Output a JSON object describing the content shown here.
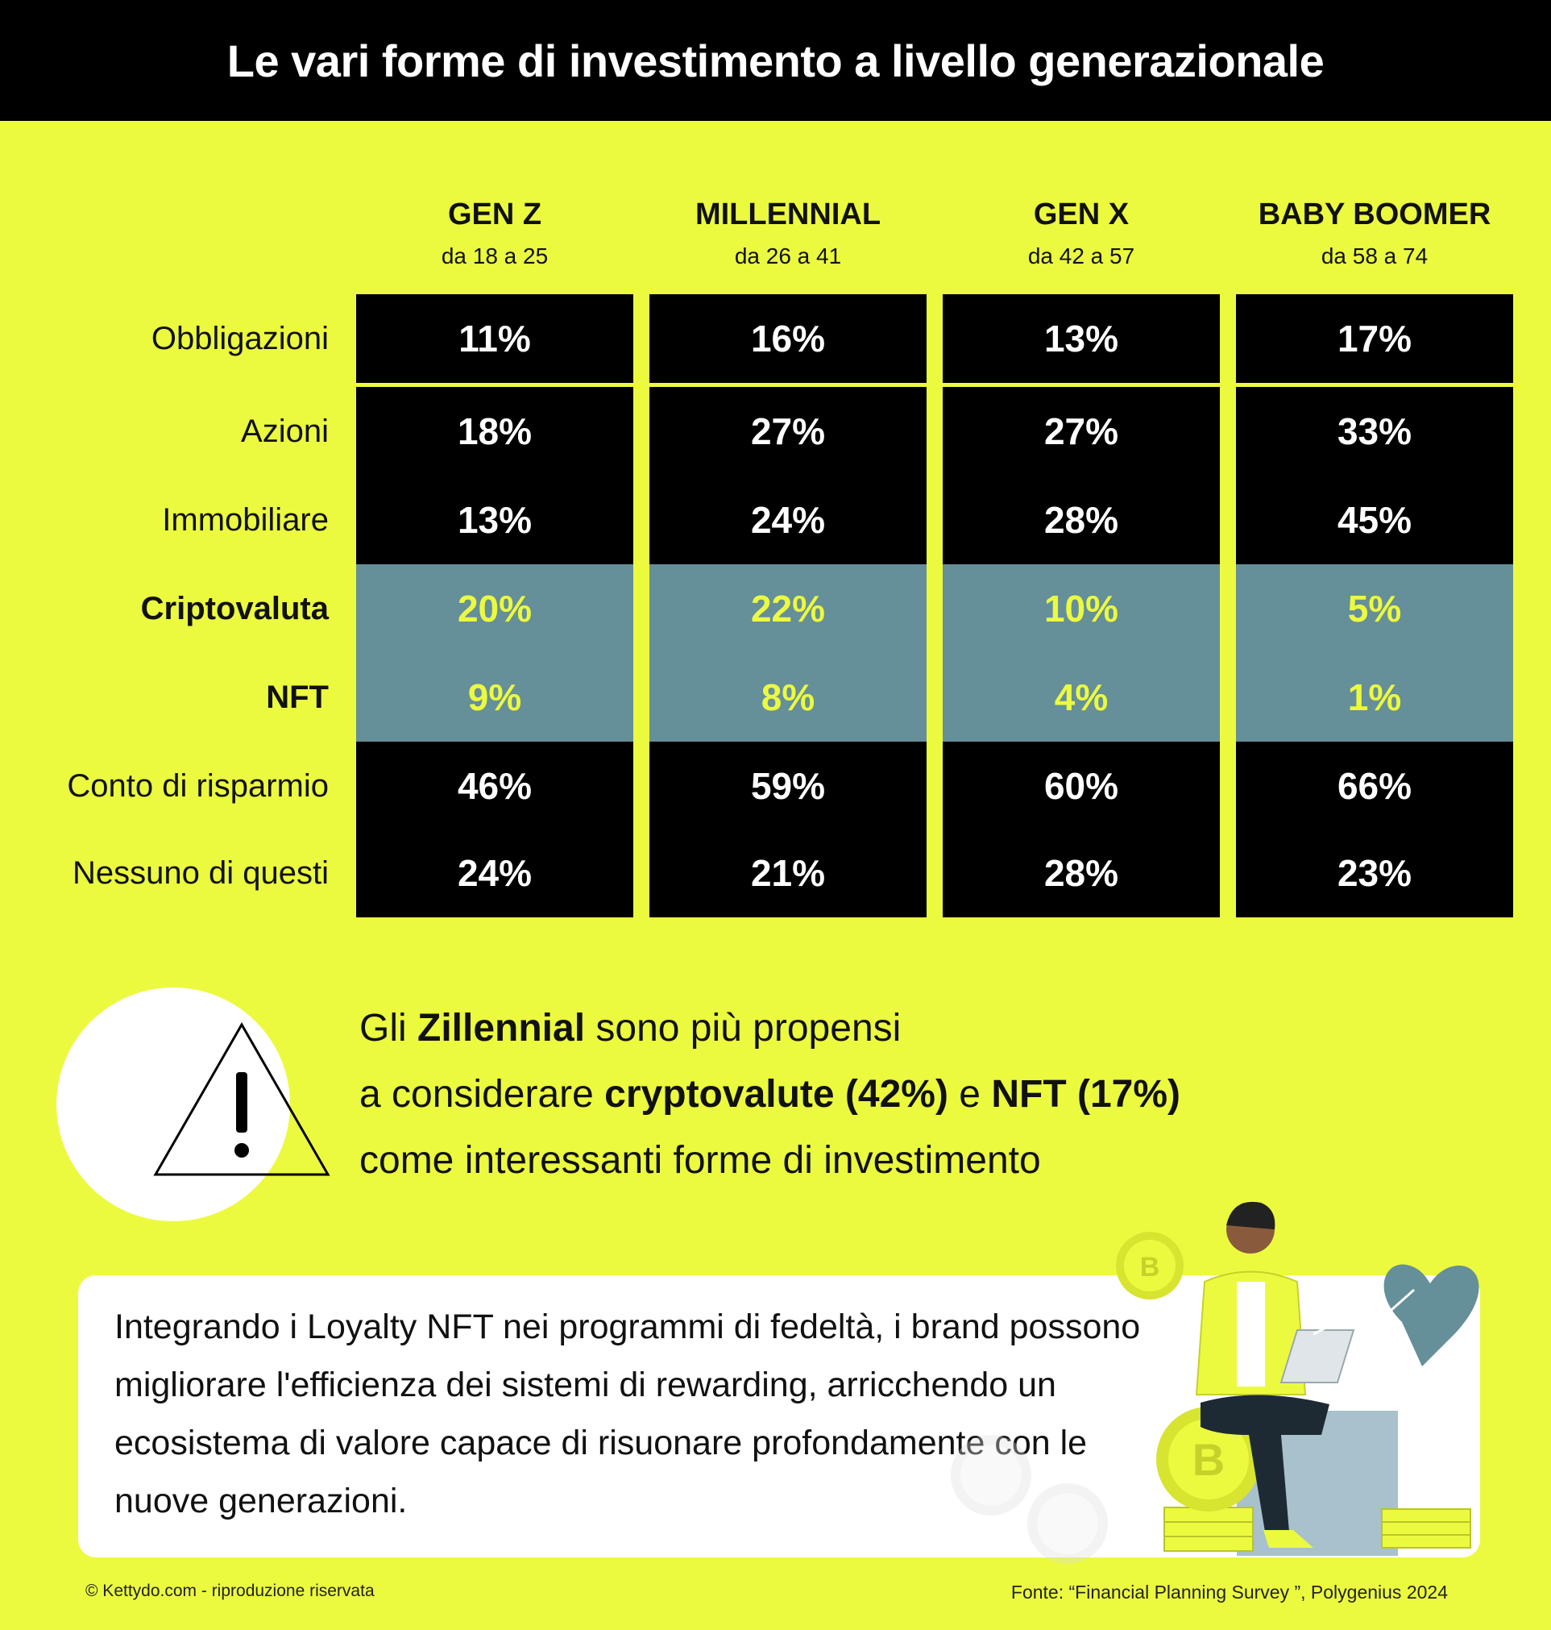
{
  "title": "Le vari forme di investimento a livello generazionale",
  "chart_data": {
    "type": "table",
    "columns": [
      {
        "name": "GEN Z",
        "age": "da 18 a 25"
      },
      {
        "name": "MILLENNIAL",
        "age": "da 26 a 41"
      },
      {
        "name": "GEN X",
        "age": "da 42 a 57"
      },
      {
        "name": "BABY BOOMER",
        "age": "da 58 a 74"
      }
    ],
    "rows": [
      {
        "label": "Obbligazioni",
        "values": [
          "11%",
          "16%",
          "13%",
          "17%"
        ],
        "highlight": false
      },
      {
        "label": "Azioni",
        "values": [
          "18%",
          "27%",
          "27%",
          "33%"
        ],
        "highlight": false
      },
      {
        "label": "Immobiliare",
        "values": [
          "13%",
          "24%",
          "28%",
          "45%"
        ],
        "highlight": false
      },
      {
        "label": "Criptovaluta",
        "values": [
          "20%",
          "22%",
          "10%",
          "5%"
        ],
        "highlight": true
      },
      {
        "label": "NFT",
        "values": [
          "9%",
          "8%",
          "4%",
          "1%"
        ],
        "highlight": true
      },
      {
        "label": "Conto di risparmio",
        "values": [
          "46%",
          "59%",
          "60%",
          "66%"
        ],
        "highlight": false
      },
      {
        "label": "Nessuno di questi",
        "values": [
          "24%",
          "21%",
          "28%",
          "23%"
        ],
        "highlight": false
      }
    ]
  },
  "callout": {
    "l1_a": "Gli ",
    "l1_b": "Zillennial",
    "l1_c": " sono più propensi",
    "l2_a": "a considerare ",
    "l2_b": "cryptovalute (42%)",
    "l2_c": " e ",
    "l2_d": "NFT (17%)",
    "l3": "come interessanti forme di investimento"
  },
  "note": "Integrando i Loyalty NFT nei programmi di fedeltà, i brand possono migliorare l'efficienza dei sistemi di rewarding, arricchendo un ecosistema di valore capace di risuonare profondamente con le nuove generazioni.",
  "footer": {
    "left": "© Kettydo.com - riproduzione riservata",
    "right": "Fonte: “Financial Planning Survey ”, Polygenius 2024"
  },
  "colors": {
    "background": "#ecfa3f",
    "cell": "#000000",
    "highlight_cell": "#658f99",
    "highlight_text": "#ecfa3f"
  },
  "icons": [
    "warning-icon",
    "bitcoin-coin-icon",
    "heart-icon",
    "laptop-icon"
  ]
}
